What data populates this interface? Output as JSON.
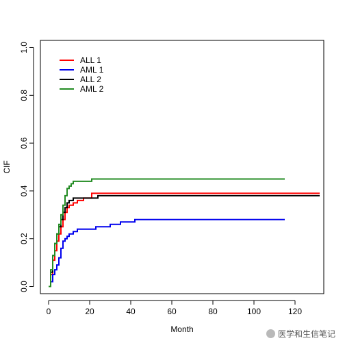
{
  "chart_data": {
    "type": "line",
    "step": true,
    "xlabel": "Month",
    "ylabel": "CIF",
    "xlim": [
      -4,
      134
    ],
    "ylim": [
      -0.03,
      1.03
    ],
    "xticks": [
      0,
      20,
      40,
      60,
      80,
      100,
      120
    ],
    "yticks": [
      0.0,
      0.2,
      0.4,
      0.6,
      0.8,
      1.0
    ],
    "ytick_labels": [
      "0.0",
      "0.2",
      "0.4",
      "0.6",
      "0.8",
      "1.0"
    ],
    "legend_position": "top-left",
    "series": [
      {
        "name": "ALL 1",
        "color": "#ff0000",
        "x": [
          0,
          1,
          2,
          3,
          4,
          5,
          6,
          7,
          8,
          9,
          10,
          12,
          14,
          17,
          21,
          132
        ],
        "y": [
          0.0,
          0.05,
          0.11,
          0.15,
          0.19,
          0.22,
          0.25,
          0.28,
          0.31,
          0.33,
          0.34,
          0.35,
          0.36,
          0.37,
          0.39,
          0.39
        ]
      },
      {
        "name": "AML 1",
        "color": "#0000ee",
        "x": [
          0,
          1,
          2,
          3,
          4,
          5,
          6,
          7,
          8,
          9,
          10,
          12,
          14,
          20,
          23,
          26,
          30,
          35,
          39,
          42,
          115
        ],
        "y": [
          0.0,
          0.02,
          0.05,
          0.07,
          0.09,
          0.12,
          0.16,
          0.19,
          0.2,
          0.21,
          0.22,
          0.23,
          0.24,
          0.24,
          0.25,
          0.25,
          0.26,
          0.27,
          0.27,
          0.28,
          0.28
        ]
      },
      {
        "name": "ALL 2",
        "color": "#000000",
        "x": [
          0,
          1,
          2,
          3,
          4,
          5,
          6,
          7,
          8,
          9,
          10,
          12,
          14,
          20,
          24,
          132
        ],
        "y": [
          0.0,
          0.06,
          0.13,
          0.18,
          0.22,
          0.25,
          0.28,
          0.31,
          0.33,
          0.35,
          0.36,
          0.37,
          0.37,
          0.37,
          0.38,
          0.38
        ]
      },
      {
        "name": "AML 2",
        "color": "#228b22",
        "x": [
          0,
          1,
          2,
          3,
          4,
          5,
          6,
          7,
          8,
          9,
          10,
          11,
          12,
          14,
          21,
          115
        ],
        "y": [
          0.0,
          0.07,
          0.13,
          0.18,
          0.22,
          0.26,
          0.3,
          0.34,
          0.38,
          0.41,
          0.42,
          0.43,
          0.44,
          0.44,
          0.45,
          0.45
        ]
      }
    ]
  },
  "watermark": {
    "text": "医学和生信笔记",
    "icon": "wechat-icon"
  }
}
